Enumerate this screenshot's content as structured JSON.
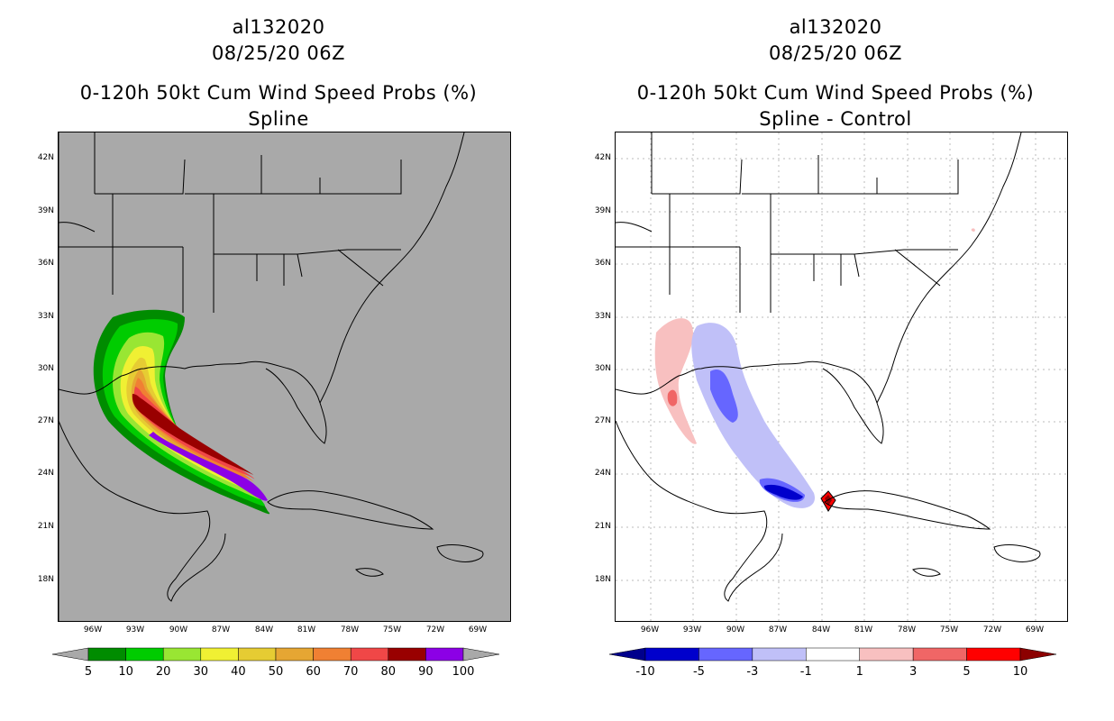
{
  "panels": [
    {
      "id": "left",
      "storm_id": "al132020",
      "datetime": "08/25/20 06Z",
      "product": "0-120h 50kt Cum Wind Speed Probs (%)",
      "subtitle": "Spline",
      "background_color": "#a9a9a9",
      "colorbar": {
        "colors": [
          "#008c00",
          "#00cc00",
          "#99e633",
          "#f0f033",
          "#e6cc33",
          "#e6a633",
          "#f08033",
          "#f04747",
          "#990000",
          "#8c00e6"
        ],
        "labels": [
          "5",
          "10",
          "20",
          "30",
          "40",
          "50",
          "60",
          "70",
          "80",
          "90",
          "100"
        ],
        "left_triangle_color": "#a9a9a9",
        "right_triangle_color": "#a9a9a9"
      }
    },
    {
      "id": "right",
      "storm_id": "al132020",
      "datetime": "08/25/20 06Z",
      "product": "0-120h 50kt Cum Wind Speed Probs (%)",
      "subtitle": "Spline - Control",
      "background_color": "#ffffff",
      "colorbar": {
        "colors": [
          "#0000cc",
          "#6666ff",
          "#c0c0f8",
          "#ffffff",
          "#f8c0c0",
          "#f06666",
          "#ff0000"
        ],
        "labels": [
          "-10",
          "-5",
          "-3",
          "-1",
          "1",
          "3",
          "5",
          "10"
        ],
        "left_triangle_color": "#00008c",
        "right_triangle_color": "#8c0000"
      }
    }
  ],
  "axes": {
    "lat_labels": [
      "42N",
      "39N",
      "36N",
      "33N",
      "30N",
      "27N",
      "24N",
      "21N",
      "18N"
    ],
    "lon_labels": [
      "96W",
      "93W",
      "90W",
      "87W",
      "84W",
      "81W",
      "78W",
      "75W",
      "72W",
      "69W"
    ]
  }
}
